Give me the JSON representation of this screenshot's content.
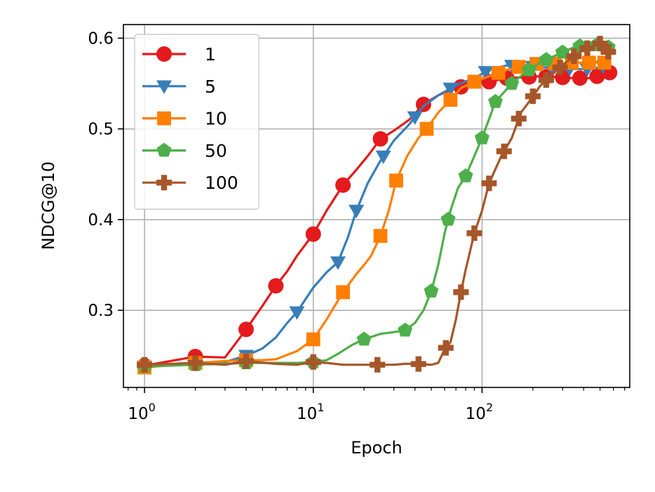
{
  "chart_data": {
    "type": "line",
    "title": "",
    "xlabel": "Epoch",
    "ylabel": "NDCG@10",
    "x_scale": "log",
    "xlim": [
      0.75,
      750
    ],
    "ylim": [
      0.215,
      0.615
    ],
    "grid": true,
    "legend_position": "top-left",
    "x_ticks": [
      {
        "value": 1,
        "base": "10",
        "exp": "0"
      },
      {
        "value": 10,
        "base": "10",
        "exp": "1"
      },
      {
        "value": 100,
        "base": "10",
        "exp": "2"
      }
    ],
    "y_ticks": [
      {
        "value": 0.3,
        "label": "0.3"
      },
      {
        "value": 0.4,
        "label": "0.4"
      },
      {
        "value": 0.5,
        "label": "0.5"
      },
      {
        "value": 0.6,
        "label": "0.6"
      }
    ],
    "series": [
      {
        "name": "1",
        "color": "#e41a1c",
        "marker": "circle",
        "points": [
          [
            1,
            0.239
          ],
          [
            2,
            0.249
          ],
          [
            3,
            0.248
          ],
          [
            4,
            0.279
          ],
          [
            5,
            0.305
          ],
          [
            6,
            0.327
          ],
          [
            7,
            0.343
          ],
          [
            8,
            0.36
          ],
          [
            10,
            0.384
          ],
          [
            12,
            0.41
          ],
          [
            15,
            0.438
          ],
          [
            18,
            0.455
          ],
          [
            21,
            0.47
          ],
          [
            25,
            0.489
          ],
          [
            30,
            0.498
          ],
          [
            37,
            0.51
          ],
          [
            45,
            0.527
          ],
          [
            55,
            0.537
          ],
          [
            70,
            0.545
          ],
          [
            90,
            0.55
          ],
          [
            110,
            0.552
          ],
          [
            140,
            0.556
          ],
          [
            180,
            0.557
          ],
          [
            220,
            0.558
          ],
          [
            280,
            0.557
          ],
          [
            350,
            0.556
          ],
          [
            450,
            0.556
          ],
          [
            550,
            0.562
          ]
        ],
        "marker_x": [
          1,
          2,
          4,
          6,
          10,
          15,
          25,
          45,
          75,
          110,
          140,
          190,
          240,
          300,
          380,
          480,
          570
        ]
      },
      {
        "name": "5",
        "color": "#377eb8",
        "marker": "triangle-down",
        "points": [
          [
            1,
            0.238
          ],
          [
            2,
            0.241
          ],
          [
            3,
            0.243
          ],
          [
            4,
            0.25
          ],
          [
            5,
            0.258
          ],
          [
            6,
            0.27
          ],
          [
            7,
            0.286
          ],
          [
            8,
            0.298
          ],
          [
            10,
            0.325
          ],
          [
            12,
            0.342
          ],
          [
            14,
            0.353
          ],
          [
            16,
            0.38
          ],
          [
            18,
            0.41
          ],
          [
            21,
            0.44
          ],
          [
            25,
            0.465
          ],
          [
            30,
            0.487
          ],
          [
            37,
            0.505
          ],
          [
            45,
            0.525
          ],
          [
            55,
            0.537
          ],
          [
            70,
            0.548
          ],
          [
            90,
            0.556
          ],
          [
            110,
            0.565
          ],
          [
            140,
            0.57
          ],
          [
            180,
            0.569
          ],
          [
            220,
            0.568
          ],
          [
            280,
            0.567
          ],
          [
            350,
            0.566
          ],
          [
            450,
            0.566
          ],
          [
            550,
            0.57
          ]
        ],
        "marker_x": [
          1,
          2,
          4,
          8,
          14,
          18,
          26,
          40,
          65,
          105,
          150,
          200,
          260,
          330,
          420,
          520
        ]
      },
      {
        "name": "10",
        "color": "#ff7f00",
        "marker": "square",
        "points": [
          [
            1,
            0.237
          ],
          [
            2,
            0.242
          ],
          [
            3,
            0.244
          ],
          [
            4,
            0.245
          ],
          [
            5,
            0.245
          ],
          [
            6,
            0.246
          ],
          [
            8,
            0.255
          ],
          [
            10,
            0.268
          ],
          [
            12,
            0.29
          ],
          [
            15,
            0.32
          ],
          [
            18,
            0.34
          ],
          [
            20,
            0.35
          ],
          [
            22,
            0.36
          ],
          [
            25,
            0.382
          ],
          [
            28,
            0.41
          ],
          [
            31,
            0.443
          ],
          [
            36,
            0.47
          ],
          [
            42,
            0.49
          ],
          [
            47,
            0.5
          ],
          [
            55,
            0.518
          ],
          [
            65,
            0.532
          ],
          [
            75,
            0.545
          ],
          [
            90,
            0.552
          ],
          [
            110,
            0.558
          ],
          [
            140,
            0.565
          ],
          [
            180,
            0.57
          ],
          [
            220,
            0.572
          ],
          [
            280,
            0.572
          ],
          [
            350,
            0.573
          ],
          [
            450,
            0.573
          ],
          [
            550,
            0.573
          ]
        ],
        "marker_x": [
          1,
          2,
          4,
          10,
          15,
          25,
          31,
          47,
          65,
          90,
          125,
          165,
          210,
          270,
          340,
          430,
          530
        ]
      },
      {
        "name": "50",
        "color": "#4daf4a",
        "marker": "pentagon",
        "points": [
          [
            1,
            0.238
          ],
          [
            2,
            0.24
          ],
          [
            3,
            0.241
          ],
          [
            4,
            0.242
          ],
          [
            6,
            0.242
          ],
          [
            8,
            0.242
          ],
          [
            10,
            0.243
          ],
          [
            12,
            0.245
          ],
          [
            14,
            0.252
          ],
          [
            17,
            0.262
          ],
          [
            20,
            0.268
          ],
          [
            25,
            0.274
          ],
          [
            30,
            0.276
          ],
          [
            35,
            0.278
          ],
          [
            40,
            0.286
          ],
          [
            45,
            0.3
          ],
          [
            50,
            0.321
          ],
          [
            55,
            0.35
          ],
          [
            60,
            0.385
          ],
          [
            65,
            0.41
          ],
          [
            72,
            0.435
          ],
          [
            80,
            0.448
          ],
          [
            90,
            0.47
          ],
          [
            100,
            0.49
          ],
          [
            120,
            0.53
          ],
          [
            150,
            0.55
          ],
          [
            180,
            0.562
          ],
          [
            220,
            0.573
          ],
          [
            280,
            0.582
          ],
          [
            350,
            0.59
          ],
          [
            450,
            0.594
          ],
          [
            550,
            0.59
          ]
        ],
        "marker_x": [
          1,
          2,
          4,
          10,
          20,
          35,
          50,
          63,
          80,
          100,
          120,
          150,
          190,
          240,
          300,
          380,
          480,
          560
        ]
      },
      {
        "name": "100",
        "color": "#a65628",
        "marker": "plus",
        "points": [
          [
            1,
            0.24
          ],
          [
            2,
            0.242
          ],
          [
            3,
            0.24
          ],
          [
            4,
            0.244
          ],
          [
            6,
            0.241
          ],
          [
            8,
            0.24
          ],
          [
            10,
            0.243
          ],
          [
            12,
            0.242
          ],
          [
            15,
            0.24
          ],
          [
            20,
            0.24
          ],
          [
            25,
            0.24
          ],
          [
            30,
            0.24
          ],
          [
            35,
            0.241
          ],
          [
            40,
            0.241
          ],
          [
            50,
            0.24
          ],
          [
            55,
            0.242
          ],
          [
            60,
            0.257
          ],
          [
            65,
            0.265
          ],
          [
            70,
            0.29
          ],
          [
            75,
            0.32
          ],
          [
            80,
            0.345
          ],
          [
            90,
            0.385
          ],
          [
            100,
            0.41
          ],
          [
            110,
            0.44
          ],
          [
            130,
            0.47
          ],
          [
            150,
            0.49
          ],
          [
            170,
            0.518
          ],
          [
            190,
            0.53
          ],
          [
            220,
            0.547
          ],
          [
            260,
            0.56
          ],
          [
            300,
            0.57
          ],
          [
            360,
            0.582
          ],
          [
            430,
            0.59
          ],
          [
            500,
            0.594
          ],
          [
            560,
            0.585
          ]
        ],
        "marker_x": [
          1,
          2,
          4,
          10,
          24,
          42,
          61,
          75,
          90,
          110,
          135,
          165,
          200,
          240,
          290,
          350,
          420,
          500,
          560
        ]
      }
    ]
  }
}
